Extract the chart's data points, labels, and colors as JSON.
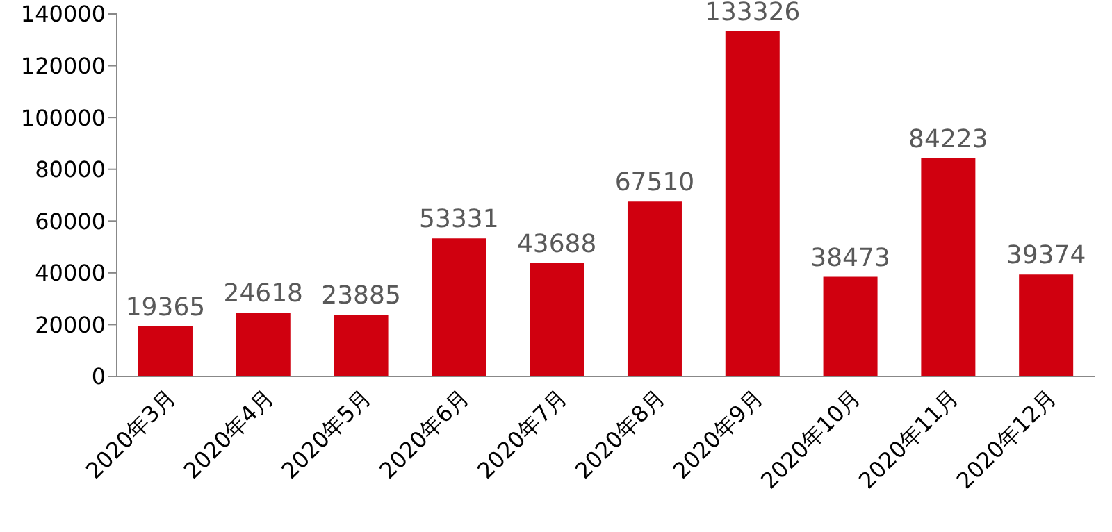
{
  "chart_data": {
    "type": "bar",
    "categories": [
      "2020年3月",
      "2020年4月",
      "2020年5月",
      "2020年6月",
      "2020年7月",
      "2020年8月",
      "2020年9月",
      "2020年10月",
      "2020年11月",
      "2020年12月"
    ],
    "values": [
      19365,
      24618,
      23885,
      53331,
      43688,
      67510,
      133326,
      38473,
      84223,
      39374
    ],
    "color": "#d0000f",
    "ylim": [
      0,
      140000
    ],
    "yticks": [
      0,
      20000,
      40000,
      60000,
      80000,
      100000,
      120000,
      140000
    ],
    "data_labels": true
  }
}
